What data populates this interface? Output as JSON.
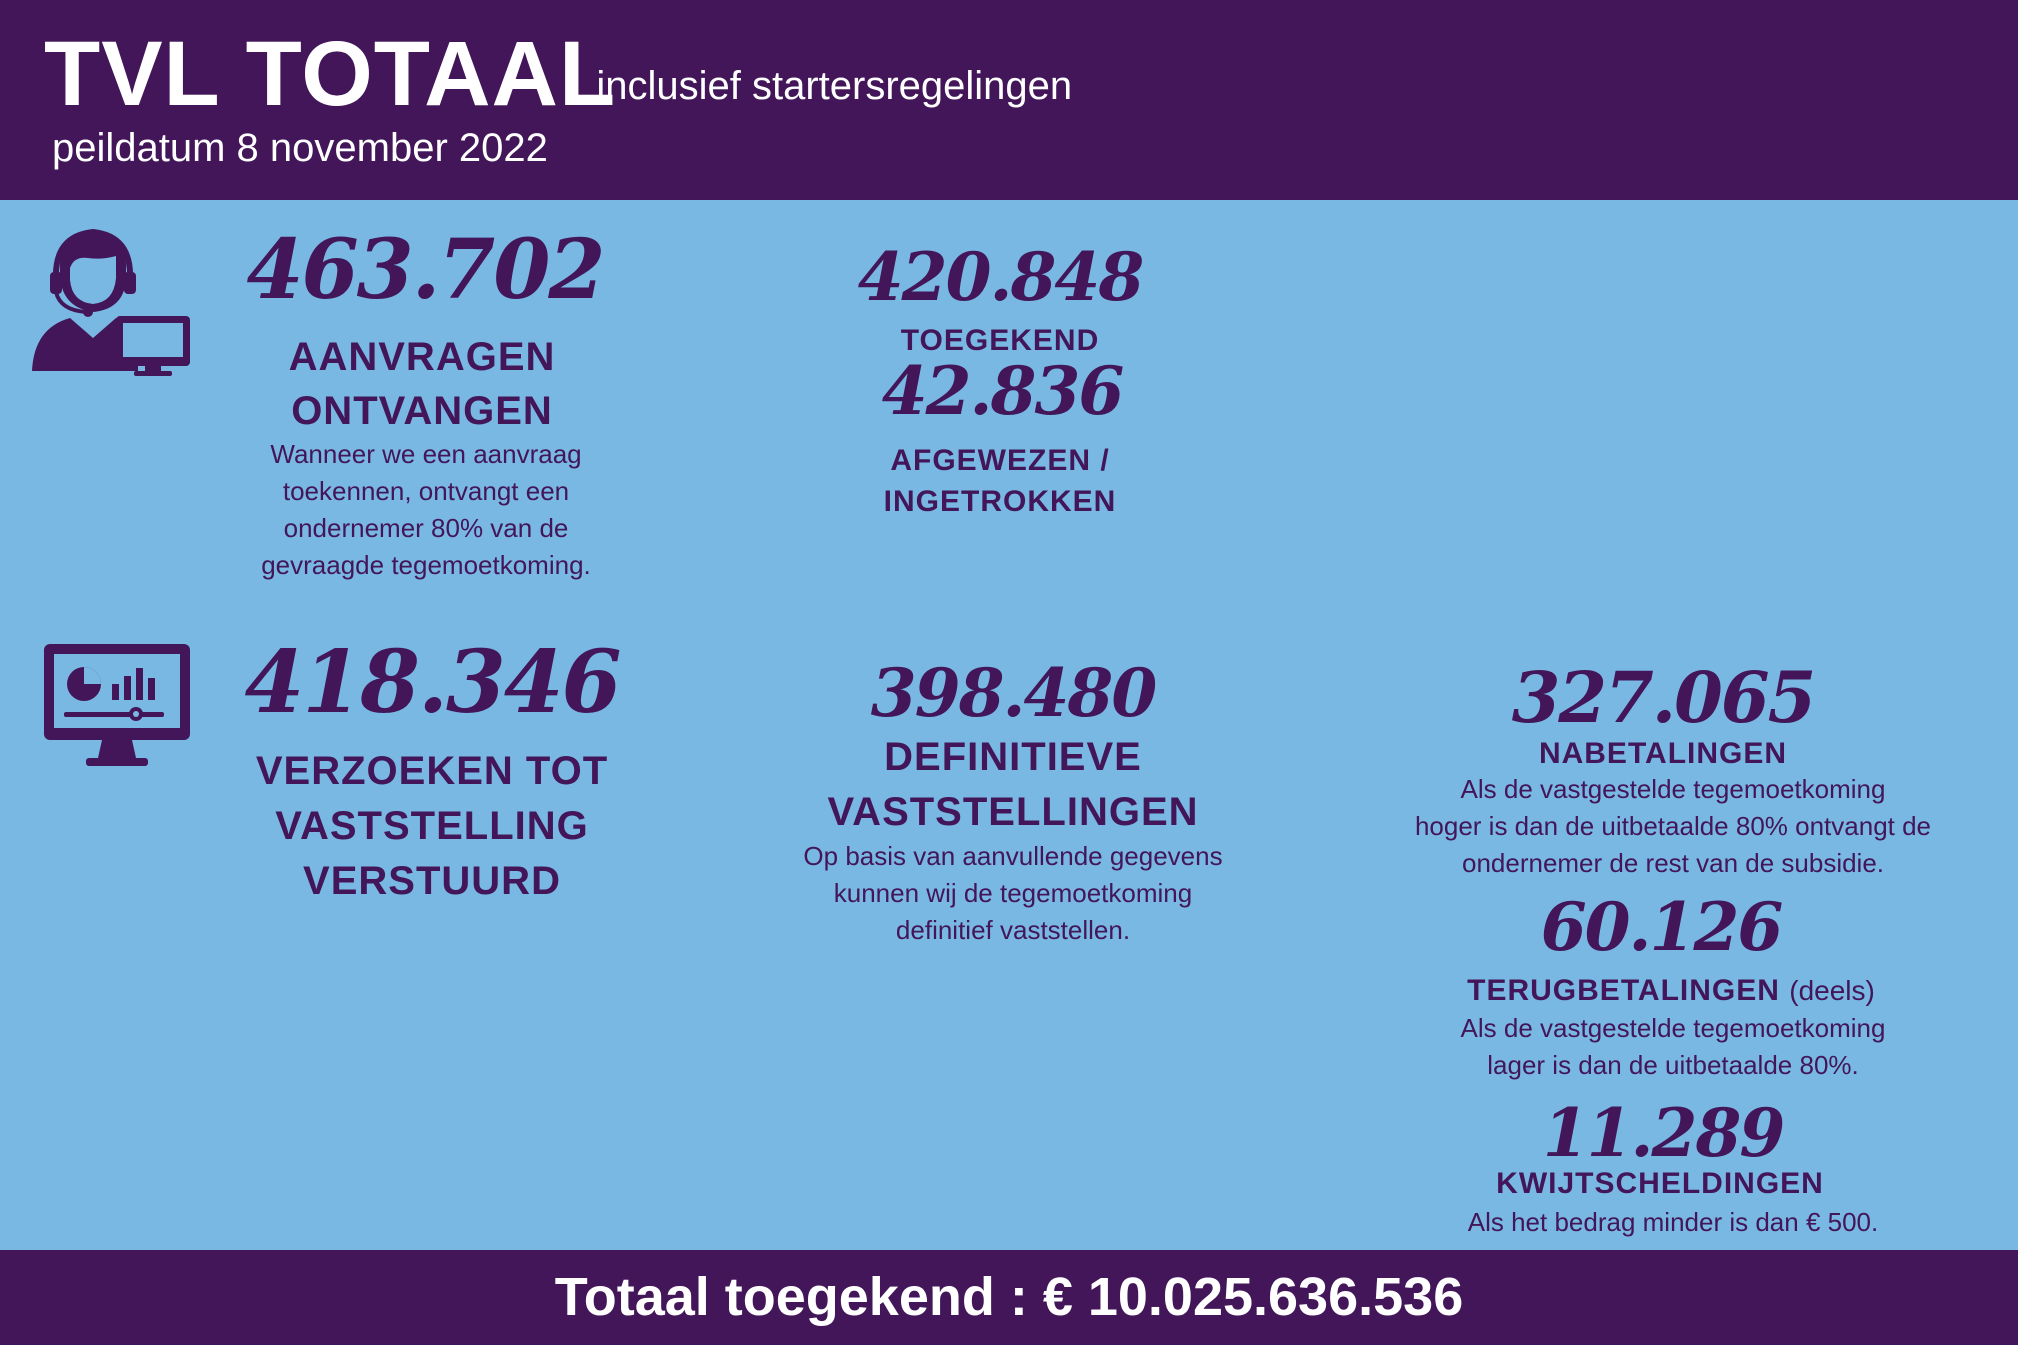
{
  "header": {
    "title": "TVL  TOTAAL",
    "dash": "-",
    "subtitle": "inclusief startersregelingen",
    "date": "peildatum 8 november 2022"
  },
  "icons": {
    "support": "customer-support-icon",
    "dashboard": "monitor-dashboard-icon"
  },
  "stats": {
    "aanvragen": {
      "number": "463.702",
      "label_line1": "AANVRAGEN",
      "label_line2": "ONTVANGEN",
      "desc_line1": "Wanneer we een aanvraag",
      "desc_line2": "toekennen, ontvangt een",
      "desc_line3": "ondernemer 80% van de",
      "desc_line4": "gevraagde tegemoetkoming."
    },
    "toegekend": {
      "number": "420.848",
      "label": "TOEGEKEND"
    },
    "afgewezen": {
      "number": "42.836",
      "label_line1": "AFGEWEZEN /",
      "label_line2": "INGETROKKEN"
    },
    "verzoeken": {
      "number": "418.346",
      "label_line1": "VERZOEKEN TOT",
      "label_line2": "VASTSTELLING",
      "label_line3": "VERSTUURD"
    },
    "definitieve": {
      "number": "398.480",
      "label_line1": "DEFINITIEVE",
      "label_line2": "VASTSTELLINGEN",
      "desc_line1": "Op basis van aanvullende gegevens",
      "desc_line2": "kunnen wij de tegemoetkoming",
      "desc_line3": "definitief vaststellen."
    },
    "nabetalingen": {
      "number": "327.065",
      "label": "NABETALINGEN",
      "desc_line1": "Als de vastgestelde tegemoetkoming",
      "desc_line2": "hoger is dan de uitbetaalde 80% ontvangt de",
      "desc_line3": "ondernemer de rest van de subsidie."
    },
    "terugbetalingen": {
      "number": "60.126",
      "label": "TERUGBETALINGEN",
      "label_suffix": "(deels)",
      "desc_line1": "Als de vastgestelde tegemoetkoming",
      "desc_line2": "lager is dan de uitbetaalde 80%."
    },
    "kwijtscheldingen": {
      "number": "11.289",
      "label": "KWIJTSCHELDINGEN",
      "desc_line1": "Als het bedrag minder is dan € 500."
    }
  },
  "footer": {
    "total": "Totaal toegekend : € 10.025.636.536"
  },
  "colors": {
    "purple": "#421659",
    "background": "#79b8e3",
    "text_on_dark": "#ffffff"
  }
}
